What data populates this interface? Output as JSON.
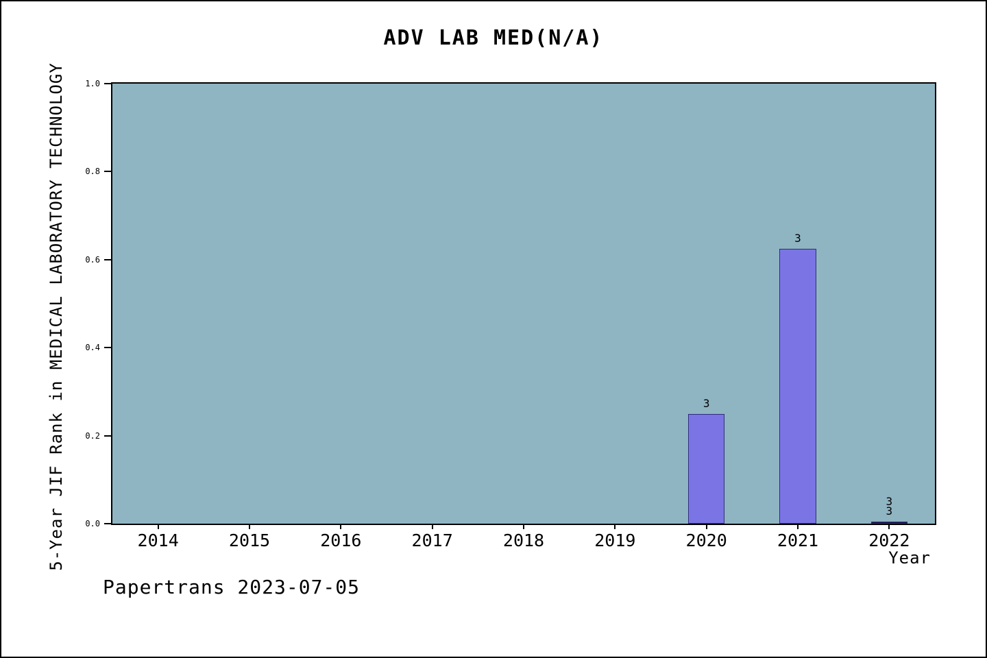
{
  "title": "ADV LAB MED(N/A)",
  "footer": "Papertrans 2023-07-05",
  "chart_data": {
    "type": "bar",
    "title": "ADV LAB MED(N/A)",
    "xlabel": "Year",
    "ylabel": "5-Year JIF Rank in MEDICAL LABORATORY TECHNOLOGY",
    "categories": [
      "2014",
      "2015",
      "2016",
      "2017",
      "2018",
      "2019",
      "2020",
      "2021",
      "2022"
    ],
    "values": [
      null,
      null,
      null,
      null,
      null,
      null,
      0.25,
      0.625,
      0.005
    ],
    "bar_labels": [
      [],
      [],
      [],
      [],
      [],
      [],
      [
        "3"
      ],
      [
        "3"
      ],
      [
        "3",
        "3"
      ]
    ],
    "bar_colors": [
      null,
      null,
      null,
      null,
      null,
      null,
      "#7b74e4",
      "#7b74e4",
      "#15153f"
    ],
    "yticks": [
      "0.0",
      "0.2",
      "0.4",
      "0.6",
      "0.8",
      "1.0"
    ],
    "ylim": [
      0,
      1
    ],
    "grid": false,
    "legend": "none",
    "plot_background": "#8fb4c2",
    "bar_color_default": "#7b74e4",
    "bar_edge_color": "#2e2e7a"
  }
}
